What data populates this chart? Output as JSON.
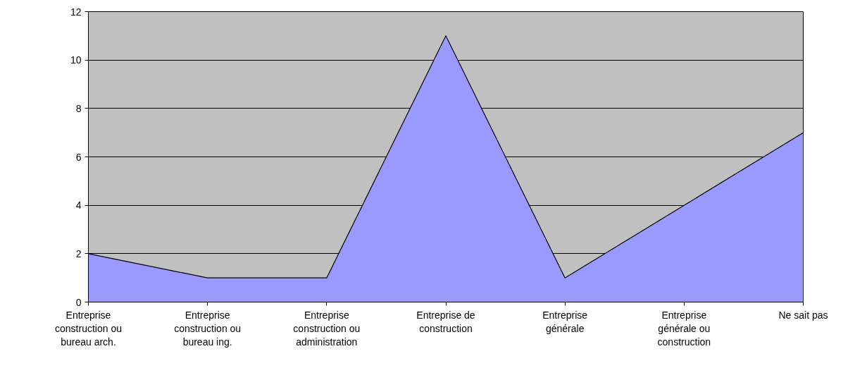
{
  "chart_data": {
    "type": "area",
    "categories": [
      "Entreprise construction ou bureau arch.",
      "Entreprise construction ou bureau ing.",
      "Entreprise construction ou administration",
      "Entreprise de construction",
      "Entreprise générale",
      "Entreprise générale ou construction",
      "Ne sait pas"
    ],
    "series": [
      {
        "color": "#9999ff",
        "values": [
          2,
          1,
          1,
          11,
          1,
          4,
          7
        ]
      }
    ],
    "ylim": [
      0,
      12
    ],
    "yticks": [
      0,
      2,
      4,
      6,
      8,
      10,
      12
    ],
    "grid": "y"
  }
}
